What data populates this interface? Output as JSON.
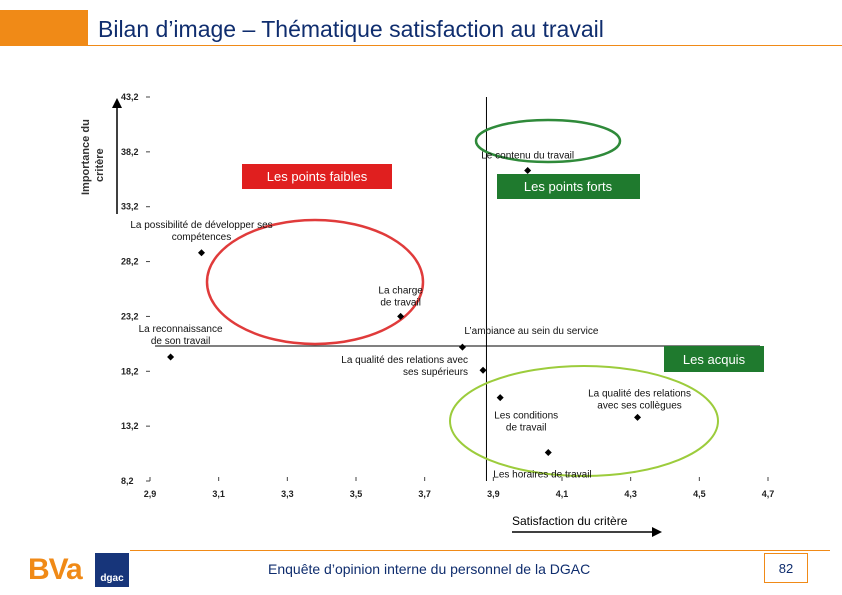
{
  "header": {
    "title": "Bilan d’image – Thématique satisfaction au travail"
  },
  "y_axis_title": [
    "Importance du",
    "critère"
  ],
  "x_axis_title": "Satisfaction du critère",
  "footer": {
    "text": "Enquête d’opinion interne du personnel de la DGAC",
    "page": "82",
    "logo_left": "BVa",
    "logo_right": "dgac"
  },
  "colors": {
    "accent": "#f08a17",
    "navy": "#0f2d6e",
    "weak_box": "#e01f1f",
    "strong_box": "#1f7a2e",
    "acquis_box": "#1f7a2e",
    "red_ellipse": "#e03b3b",
    "green_ellipse": "#2f8a3a",
    "light_green_ellipse": "#9ccc3c"
  },
  "chart_data": {
    "type": "scatter",
    "xlabel": "Satisfaction du critère",
    "ylabel": "Importance du critère",
    "xlim": [
      2.9,
      4.7
    ],
    "ylim": [
      8.2,
      43.2
    ],
    "x_ticks": [
      "2,9",
      "3,1",
      "3,3",
      "3,5",
      "3,7",
      "3,9",
      "4,1",
      "4,3",
      "4,5",
      "4,7"
    ],
    "y_ticks": [
      "43,2",
      "38,2",
      "33,2",
      "28,2",
      "23,2",
      "18,2",
      "13,2",
      "8,2"
    ],
    "crosshair": {
      "x": 3.88,
      "y": 20.5
    },
    "points": [
      {
        "label": [
          "Le contenu du travail"
        ],
        "x": 4.0,
        "y": 36.5
      },
      {
        "label": [
          "La possibilité de développer ses",
          "compétences"
        ],
        "x": 3.05,
        "y": 29.0
      },
      {
        "label": [
          "La reconnaissance",
          "de son travail"
        ],
        "x": 2.96,
        "y": 19.5
      },
      {
        "label": [
          "La charge",
          "de travail"
        ],
        "x": 3.63,
        "y": 23.2
      },
      {
        "label": [
          "L’ambiance au sein du service"
        ],
        "x": 3.81,
        "y": 20.4
      },
      {
        "label": [
          "La qualité des relations avec",
          "ses supérieurs"
        ],
        "x": 3.87,
        "y": 18.3
      },
      {
        "label": [
          "Les conditions",
          "de travail"
        ],
        "x": 3.92,
        "y": 15.8
      },
      {
        "label": [
          "La qualité des relations",
          "avec ses collègues"
        ],
        "x": 4.32,
        "y": 14.0
      },
      {
        "label": [
          "Les horaires de travail"
        ],
        "x": 4.06,
        "y": 10.8
      }
    ],
    "quadrant_labels": {
      "weak": "Les points faibles",
      "strong": "Les points forts",
      "acquis": "Les acquis"
    }
  }
}
